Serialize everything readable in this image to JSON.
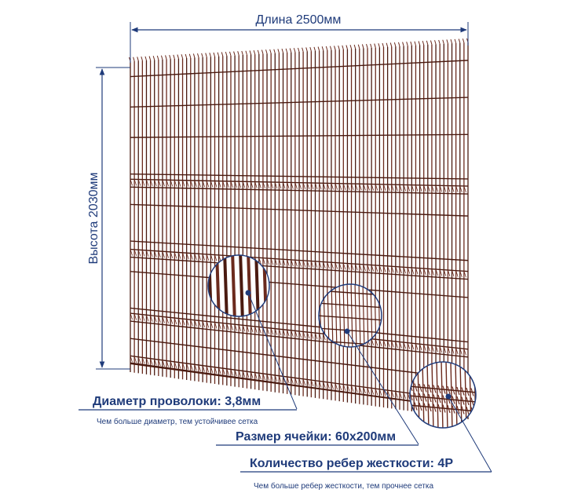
{
  "dimensions": {
    "length": "Длина 2500мм",
    "height": "Высота 2030мм"
  },
  "annotations": [
    {
      "id": "wire",
      "title": "Диаметр проволоки: 3,8мм",
      "note": "Чем больше диаметр, тем устойчивее сетка"
    },
    {
      "id": "mesh",
      "title": "Размер ячейки: 60х200мм",
      "note": ""
    },
    {
      "id": "ribs",
      "title": "Количество ребер жесткости: 4Р",
      "note": "Чем больше ребер жесткости, тем прочнее сетка"
    }
  ],
  "colors": {
    "wire": "#6b2a1d",
    "wire_dark": "#4a1a10",
    "annotation": "#1f3b7a"
  }
}
